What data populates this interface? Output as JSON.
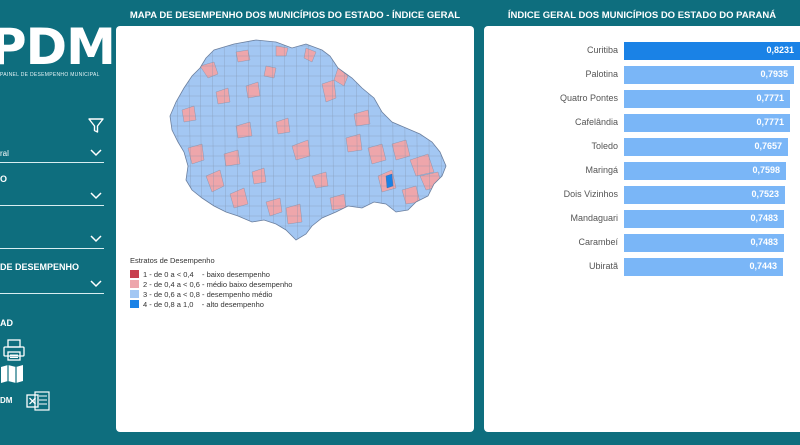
{
  "logo": {
    "text": "PDM",
    "subtitle": "PAINEL DE DESEMPENHO MUNICIPAL"
  },
  "sidebar": {
    "filters": [
      {
        "label": "",
        "value": "ral"
      },
      {
        "label": "O",
        "value": ""
      },
      {
        "label": "",
        "value": ""
      },
      {
        "label": "DE DESEMPENHO",
        "value": ""
      }
    ],
    "section_label": "AD",
    "export_label": "DM"
  },
  "map_panel": {
    "title": "MAPA DE DESEMPENHO DOS MUNICÍPIOS DO ESTADO - ÍNDICE GERAL",
    "legend": {
      "title": "Estratos de Desempenho",
      "items": [
        {
          "text": "1 - de 0 a < 0,4    - baixo desempenho",
          "color": "#c8404f"
        },
        {
          "text": "2 - de 0,4 a < 0,6 - médio baixo desempenho",
          "color": "#eea6ab"
        },
        {
          "text": "3 - de 0,6 a < 0,8 - desempenho médio",
          "color": "#a3c7f3"
        },
        {
          "text": "4 - de 0,8 a 1,0    - alto desempenho",
          "color": "#1a82e6"
        }
      ]
    }
  },
  "rank_panel": {
    "title": "ÍNDICE GERAL DOS MUNICÍPIOS DO ESTADO DO PARANÁ",
    "items": [
      {
        "name": "Curitiba",
        "value": "0,8231",
        "fraction": 1.0,
        "color": "#1a82e6"
      },
      {
        "name": "Palotina",
        "value": "0,7935",
        "fraction": 0.964,
        "color": "#7ab6f7"
      },
      {
        "name": "Quatro Pontes",
        "value": "0,7771",
        "fraction": 0.944,
        "color": "#7ab6f7"
      },
      {
        "name": "Cafelândia",
        "value": "0,7771",
        "fraction": 0.944,
        "color": "#7ab6f7"
      },
      {
        "name": "Toledo",
        "value": "0,7657",
        "fraction": 0.93,
        "color": "#7ab6f7"
      },
      {
        "name": "Maringá",
        "value": "0,7598",
        "fraction": 0.923,
        "color": "#7ab6f7"
      },
      {
        "name": "Dois Vizinhos",
        "value": "0,7523",
        "fraction": 0.914,
        "color": "#7ab6f7"
      },
      {
        "name": "Mandaguari",
        "value": "0,7483",
        "fraction": 0.909,
        "color": "#7ab6f7"
      },
      {
        "name": "Carambeí",
        "value": "0,7483",
        "fraction": 0.909,
        "color": "#7ab6f7"
      },
      {
        "name": "Ubiratã",
        "value": "0,7443",
        "fraction": 0.904,
        "color": "#7ab6f7"
      }
    ]
  }
}
